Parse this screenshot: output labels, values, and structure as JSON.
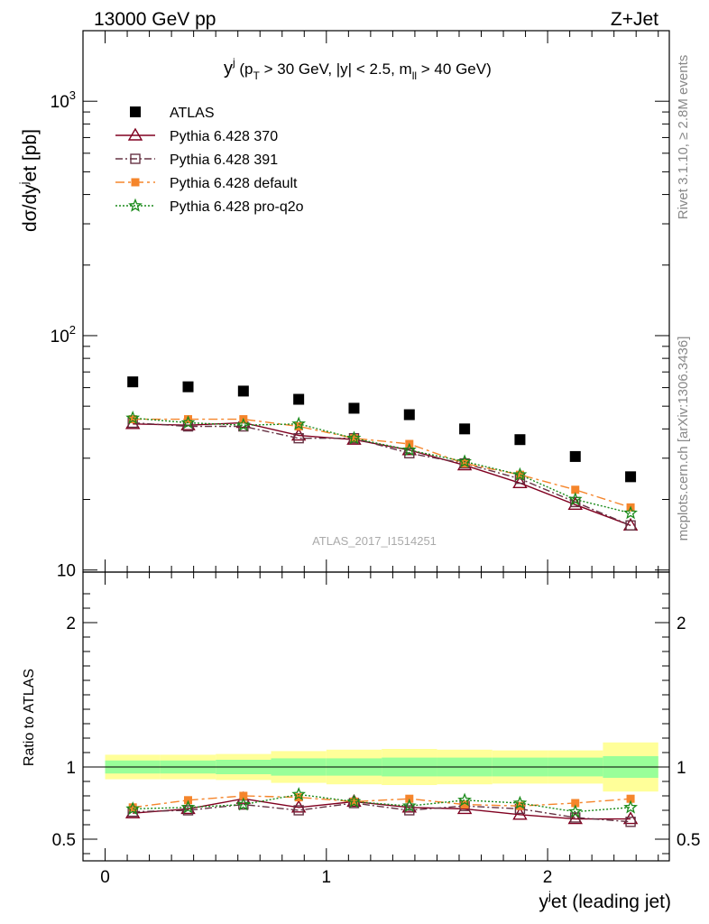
{
  "header": {
    "left": "13000 GeV pp",
    "right": "Z+Jet"
  },
  "side_labels": {
    "rivet": "Rivet 3.1.10, ≥ 2.8M events",
    "mcplots": "mcplots.cern.ch [arXiv:1306.3436]"
  },
  "watermark": "ATLAS_2017_I1514251",
  "colors": {
    "atlas": "#000000",
    "p370": "#800020",
    "p391": "#663344",
    "pdefault": "#f5852b",
    "pq2o": "#1a8a1a",
    "band_inner": "#99ff99",
    "band_outer": "#ffff99"
  },
  "chart_data": [
    {
      "type": "scatter",
      "panel": "main",
      "title": "y^j (p_T > 30 GeV, |y| < 2.5, m_ll > 40 GeV)",
      "title_parts": {
        "sym": "y",
        "sym_sup": "j",
        "open": " (p",
        "sub": "T",
        "mid": " > 30 GeV, |y| < 2.5, m",
        "sub2": "ll",
        "close": " > 40 GeV)"
      },
      "ylabel": "dσ/dyʲet [pb]",
      "ylabel_parts": {
        "a": "dσ/dy",
        "sup": "j",
        "b": "et [pb]"
      },
      "yscale": "log",
      "xlim": [
        -0.1,
        2.55
      ],
      "ylim": [
        9.8,
        2000
      ],
      "ytick_labels": [
        "10",
        "10",
        "10"
      ],
      "ytick_exps": [
        "",
        "2",
        "3"
      ],
      "legend_position": "top-left",
      "x": [
        0.125,
        0.375,
        0.625,
        0.875,
        1.125,
        1.375,
        1.625,
        1.875,
        2.125,
        2.375
      ],
      "x_edges": [
        0,
        0.25,
        0.5,
        0.75,
        1.0,
        1.25,
        1.5,
        1.75,
        2.0,
        2.25,
        2.5
      ],
      "series": [
        {
          "name": "ATLAS",
          "key": "atlas",
          "marker": "square",
          "values": [
            63.5,
            60.5,
            58,
            53.5,
            49,
            46,
            40,
            36,
            30.5,
            25
          ]
        },
        {
          "name": "Pythia 6.428 370",
          "key": "p370",
          "marker": "triangle",
          "line": "solid",
          "values": [
            42,
            41.5,
            42.5,
            37.5,
            36,
            32.5,
            28,
            23.5,
            19,
            15.5
          ]
        },
        {
          "name": "Pythia 6.428 391",
          "key": "p391",
          "marker": "open-square",
          "line": "dashdot",
          "values": [
            42.5,
            41,
            41,
            36.5,
            36.5,
            31.5,
            28.5,
            24.5,
            19.5,
            15.5
          ]
        },
        {
          "name": "Pythia 6.428 default",
          "key": "pdefault",
          "marker": "filled-square",
          "line": "dashdot2",
          "values": [
            44,
            44,
            44,
            41,
            36.5,
            34.5,
            28.5,
            25.5,
            22,
            18.5
          ]
        },
        {
          "name": "Pythia 6.428 pro-q2o",
          "key": "pq2o",
          "marker": "star",
          "line": "dotted",
          "values": [
            44.5,
            42.5,
            41.5,
            42,
            36.5,
            32.5,
            29,
            25.5,
            20,
            17.5
          ]
        }
      ]
    },
    {
      "type": "line",
      "panel": "ratio",
      "ylabel": "Ratio to ATLAS",
      "xlabel": "yʲet (leading jet)",
      "xlabel_parts": {
        "a": "y",
        "sup": "j",
        "b": "et (leading jet)"
      },
      "yscale": "linear",
      "xlim": [
        -0.1,
        2.55
      ],
      "ylim": [
        0.35,
        2.35
      ],
      "ytick_labels": [
        "0.5",
        "1",
        "2"
      ],
      "xtick_labels": [
        "0",
        "1",
        "2"
      ],
      "x": [
        0.125,
        0.375,
        0.625,
        0.875,
        1.125,
        1.375,
        1.625,
        1.875,
        2.125,
        2.375
      ],
      "x_edges": [
        0,
        0.25,
        0.5,
        0.75,
        1.0,
        1.25,
        1.5,
        1.75,
        2.0,
        2.25,
        2.5
      ],
      "band_inner_half": [
        0.045,
        0.045,
        0.05,
        0.06,
        0.06,
        0.065,
        0.065,
        0.065,
        0.065,
        0.075
      ],
      "band_outer_half": [
        0.085,
        0.085,
        0.09,
        0.11,
        0.12,
        0.125,
        0.12,
        0.115,
        0.115,
        0.17
      ],
      "series": [
        {
          "name": "Pythia 6.428 370",
          "key": "p370",
          "marker": "triangle",
          "line": "solid",
          "values": [
            0.68,
            0.71,
            0.78,
            0.72,
            0.76,
            0.72,
            0.71,
            0.67,
            0.64,
            0.64
          ]
        },
        {
          "name": "Pythia 6.428 391",
          "key": "p391",
          "marker": "open-square",
          "line": "dashdot",
          "values": [
            0.69,
            0.7,
            0.74,
            0.7,
            0.75,
            0.7,
            0.73,
            0.71,
            0.65,
            0.62
          ]
        },
        {
          "name": "Pythia 6.428 default",
          "key": "pdefault",
          "marker": "filled-square",
          "line": "dashdot2",
          "values": [
            0.72,
            0.77,
            0.8,
            0.79,
            0.76,
            0.78,
            0.74,
            0.73,
            0.75,
            0.78
          ]
        },
        {
          "name": "Pythia 6.428 pro-q2o",
          "key": "pq2o",
          "marker": "star",
          "line": "dotted",
          "values": [
            0.71,
            0.72,
            0.74,
            0.81,
            0.76,
            0.73,
            0.77,
            0.75,
            0.69,
            0.72
          ]
        }
      ]
    }
  ]
}
